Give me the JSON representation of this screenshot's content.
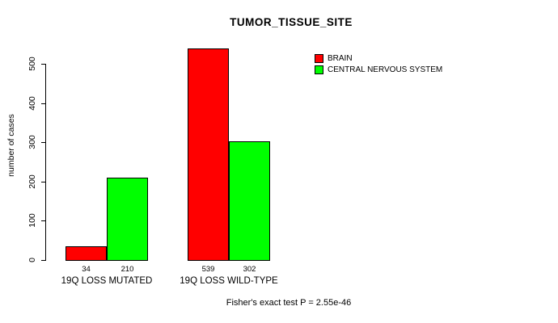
{
  "chart_data": {
    "type": "bar",
    "title": "TUMOR_TISSUE_SITE",
    "xlabel": "",
    "ylabel": "number of cases",
    "categories": [
      "19Q LOSS MUTATED",
      "19Q LOSS WILD-TYPE"
    ],
    "series": [
      {
        "name": "BRAIN",
        "color": "#ff0000",
        "values": [
          34,
          539
        ]
      },
      {
        "name": "CENTRAL NERVOUS SYSTEM",
        "color": "#00ff00",
        "values": [
          210,
          302
        ]
      }
    ],
    "yticks": [
      0,
      100,
      200,
      300,
      400,
      500
    ],
    "ylim": [
      0,
      500
    ],
    "grid": false,
    "legend_position": "top-right",
    "annotation": "Fisher's exact test P = 2.55e-46"
  }
}
